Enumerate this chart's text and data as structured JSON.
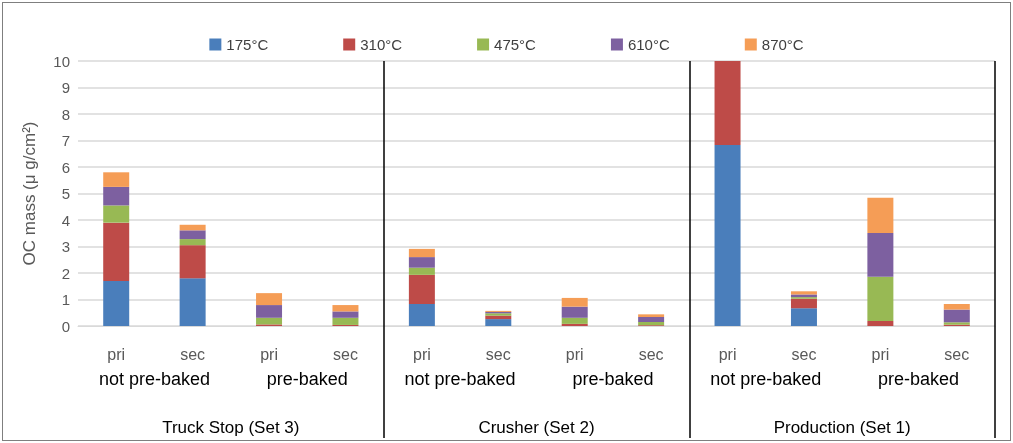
{
  "chart_data": {
    "type": "bar",
    "stacked": true,
    "ylabel": "OC mass (μ g/cm²)",
    "categories": [
      "pri",
      "sec",
      "pri",
      "sec",
      "pri",
      "sec",
      "pri",
      "sec",
      "pri",
      "sec",
      "pri",
      "sec"
    ],
    "annotations": [
      "not pre-baked",
      "pre-baked",
      "not pre-baked",
      "pre-baked",
      "not pre-baked",
      "pre-baked",
      "Truck Stop (Set 3)",
      "Crusher (Set 2)",
      "Production (Set 1)"
    ],
    "series": [
      {
        "name": "175°C",
        "color": "#4a7ebb",
        "values": [
          1.7,
          1.8,
          0,
          0,
          0.83,
          0.26,
          0,
          0,
          6.83,
          0.67,
          0,
          0
        ]
      },
      {
        "name": "310°C",
        "color": "#be4b48",
        "values": [
          2.2,
          1.25,
          0.06,
          0.04,
          1.1,
          0.13,
          0.08,
          0.03,
          3.17,
          0.36,
          0.19,
          0.05
        ]
      },
      {
        "name": "475°C",
        "color": "#98b954",
        "values": [
          0.65,
          0.23,
          0.25,
          0.27,
          0.27,
          0.09,
          0.23,
          0.12,
          0,
          0.06,
          1.67,
          0.09
        ]
      },
      {
        "name": "610°C",
        "color": "#7d60a0",
        "values": [
          0.7,
          0.33,
          0.48,
          0.24,
          0.4,
          0.05,
          0.42,
          0.19,
          0,
          0.1,
          1.65,
          0.48
        ]
      },
      {
        "name": "870°C",
        "color": "#f59d56",
        "values": [
          0.55,
          0.21,
          0.45,
          0.24,
          0.31,
          0.04,
          0.33,
          0.1,
          0,
          0.12,
          1.33,
          0.21
        ]
      }
    ],
    "ylim": [
      0,
      10
    ],
    "yticks": [
      0,
      1,
      2,
      3,
      4,
      5,
      6,
      7,
      8,
      9,
      10
    ],
    "grid": "y",
    "legend": "top"
  }
}
